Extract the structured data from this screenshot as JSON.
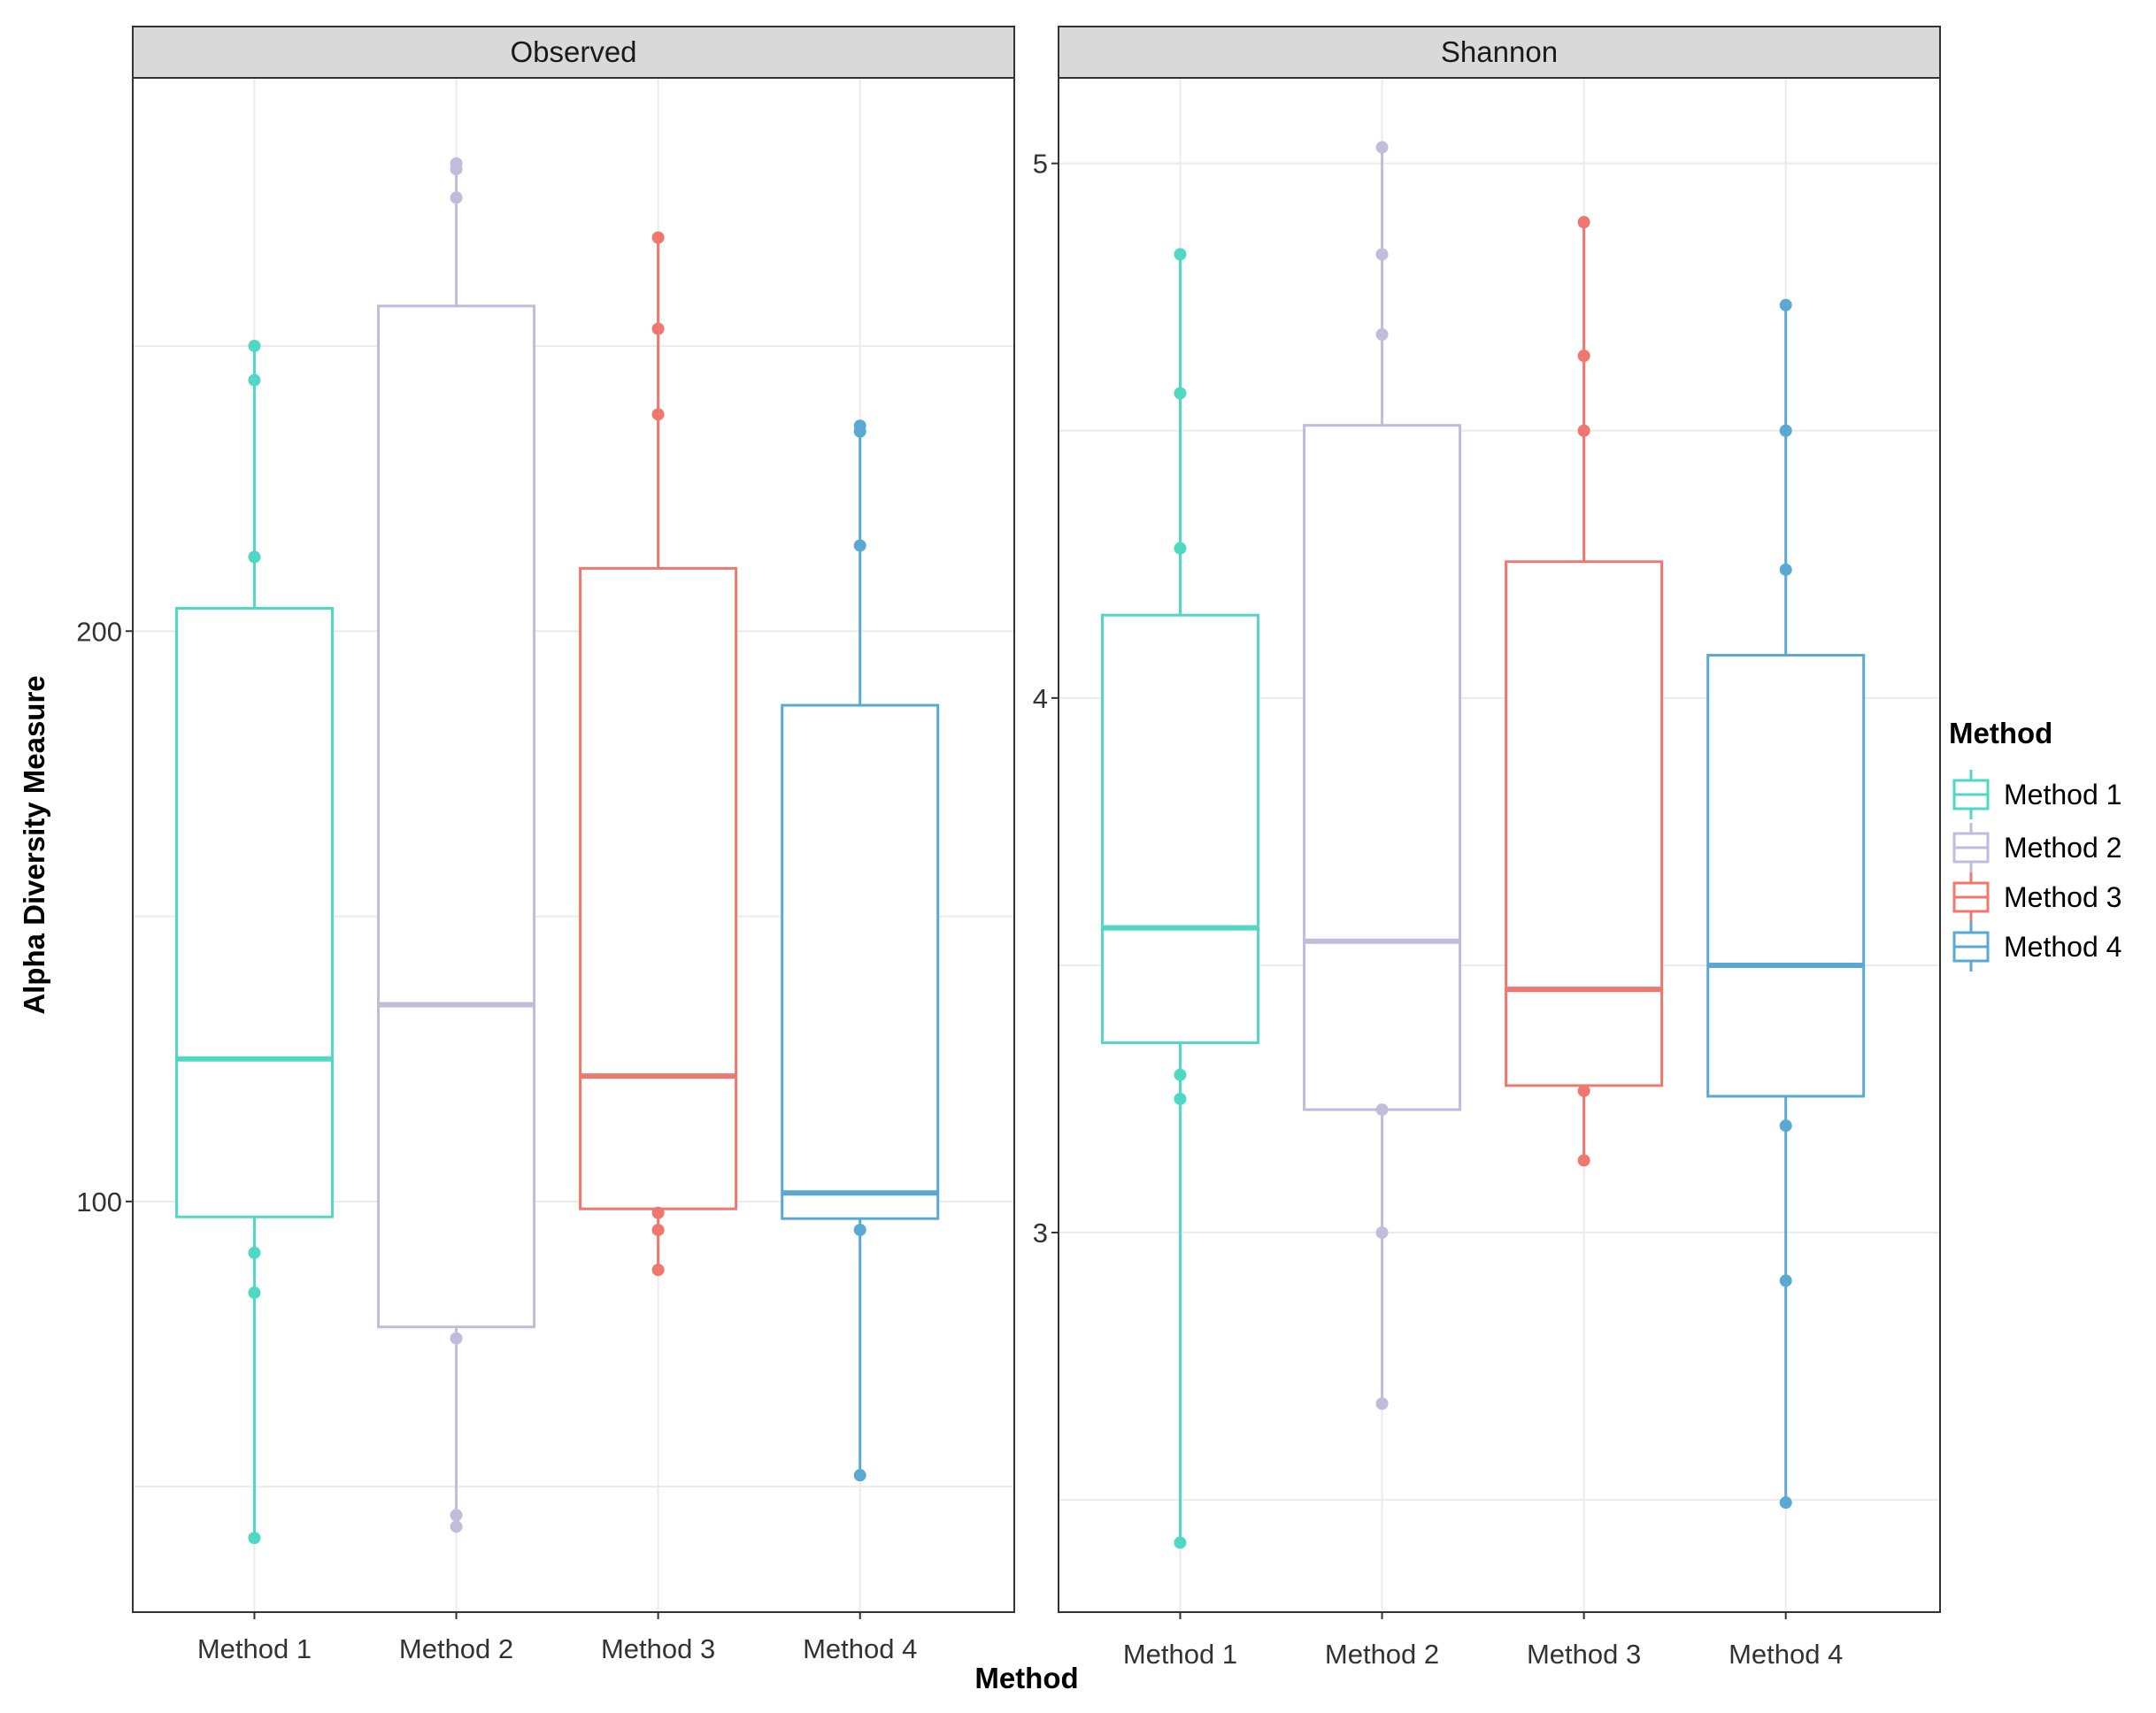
{
  "chart_data": {
    "type": "boxplot",
    "ylabel": "Alpha Diversity Measure",
    "xlabel": "Method",
    "categories": [
      "Method 1",
      "Method 2",
      "Method 3",
      "Method 4"
    ],
    "colors": {
      "Method 1": "#4fd8c4",
      "Method 2": "#c2bbdc",
      "Method 3": "#f0776d",
      "Method 4": "#5aa9d2"
    },
    "legend": {
      "title": "Method",
      "position": "right",
      "entries": [
        "Method 1",
        "Method 2",
        "Method 3",
        "Method 4"
      ]
    },
    "panels": [
      {
        "title": "Observed",
        "ylim": [
          28,
          297
        ],
        "yticks": [
          100,
          200
        ],
        "ytick_labels": [
          "100",
          "200"
        ],
        "ygrid_major": [
          50,
          100,
          150,
          200,
          250
        ],
        "boxes": [
          {
            "category": "Method 1",
            "q1": 97.3,
            "median": 125,
            "q3": 204,
            "wmin": 41,
            "wmax": 250,
            "points": [
              41,
              84,
              91,
              213,
              244,
              250
            ]
          },
          {
            "category": "Method 2",
            "q1": 78,
            "median": 134.5,
            "q3": 257,
            "wmin": 43,
            "wmax": 282,
            "points": [
              43,
              45,
              76,
              276,
              281,
              282
            ]
          },
          {
            "category": "Method 3",
            "q1": 98.7,
            "median": 122,
            "q3": 211,
            "wmin": 88,
            "wmax": 269,
            "points": [
              88,
              95,
              98,
              238,
              253,
              269
            ]
          },
          {
            "category": "Method 4",
            "q1": 97,
            "median": 101.5,
            "q3": 187,
            "wmin": 52,
            "wmax": 236,
            "points": [
              52,
              95,
              215,
              235,
              236
            ]
          }
        ]
      },
      {
        "title": "Shannon",
        "ylim": [
          2.29,
          5.16
        ],
        "yticks": [
          3,
          4,
          5
        ],
        "ytick_labels": [
          "3",
          "4",
          "5"
        ],
        "ygrid_major": [
          2.5,
          3,
          3.5,
          4,
          4.5,
          5
        ],
        "boxes": [
          {
            "category": "Method 1",
            "q1": 3.355,
            "median": 3.57,
            "q3": 4.155,
            "wmin": 2.42,
            "wmax": 4.83,
            "points": [
              2.42,
              3.25,
              3.295,
              4.28,
              4.57,
              4.83
            ]
          },
          {
            "category": "Method 2",
            "q1": 3.23,
            "median": 3.545,
            "q3": 4.51,
            "wmin": 2.68,
            "wmax": 5.03,
            "points": [
              2.68,
              3.0,
              3.23,
              4.68,
              4.83,
              5.03
            ]
          },
          {
            "category": "Method 3",
            "q1": 3.275,
            "median": 3.455,
            "q3": 4.255,
            "wmin": 3.135,
            "wmax": 4.89,
            "points": [
              3.135,
              3.265,
              4.5,
              4.64,
              4.89
            ]
          },
          {
            "category": "Method 4",
            "q1": 3.255,
            "median": 3.5,
            "q3": 4.08,
            "wmin": 2.495,
            "wmax": 4.735,
            "points": [
              2.495,
              2.91,
              3.2,
              4.24,
              4.5,
              4.735
            ]
          }
        ]
      }
    ]
  }
}
